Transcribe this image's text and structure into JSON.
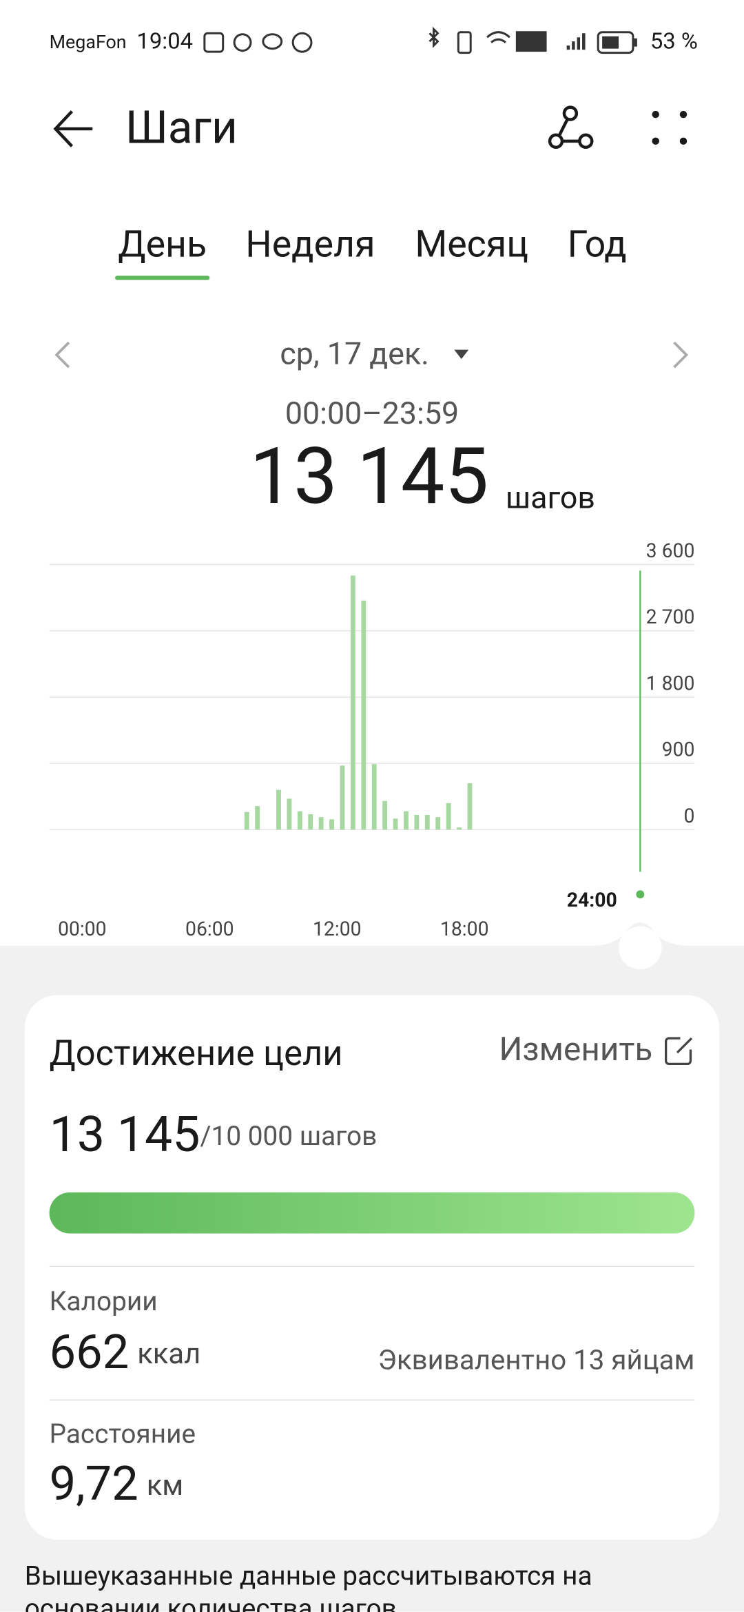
{
  "status_bar": {
    "carrier": "MegaFon",
    "time": "19:04",
    "battery": "53 %"
  },
  "header": {
    "title": "Шаги"
  },
  "tabs": {
    "items": [
      "День",
      "Неделя",
      "Месяц",
      "Год"
    ],
    "active": 0
  },
  "date_nav": {
    "date": "ср, 17 дек.",
    "range": "00:00–23:59"
  },
  "summary": {
    "total": "13 145",
    "unit": "шагов"
  },
  "chart_data": {
    "type": "bar",
    "color": "#a8d8a2",
    "x": [
      7.75,
      8.25,
      9.25,
      9.75,
      10.25,
      10.75,
      11.25,
      11.75,
      12.25,
      12.75,
      13.25,
      13.75,
      14.25,
      14.75,
      15.25,
      15.75,
      16.25,
      16.75,
      17.25,
      17.75,
      18.25
    ],
    "values": [
      240,
      320,
      540,
      420,
      250,
      210,
      170,
      140,
      870,
      3450,
      3110,
      890,
      390,
      150,
      250,
      200,
      200,
      170,
      360,
      30,
      630
    ],
    "xlim": [
      0,
      24
    ],
    "xticks": [
      {
        "value": 0,
        "label": "00:00"
      },
      {
        "value": 6,
        "label": "06:00"
      },
      {
        "value": 12,
        "label": "12:00"
      },
      {
        "value": 18,
        "label": "18:00"
      },
      {
        "value": 24,
        "label": "24:00"
      }
    ],
    "ylim": [
      0,
      3600
    ],
    "yticks": [
      0,
      900,
      {
        "value": 1800,
        "label": "1 800"
      },
      {
        "value": 2700,
        "label": "2 700"
      },
      {
        "value": 3600,
        "label": "3 600"
      }
    ],
    "grid": true
  },
  "goal_card": {
    "title": "Достижение цели",
    "edit": "Изменить",
    "steps": "13 145",
    "goal": "/10 000 шагов"
  },
  "calories": {
    "label": "Калории",
    "value": "662",
    "unit": "ккал",
    "equivalent": "Эквивалентно 13 яйцам"
  },
  "distance": {
    "label": "Расстояние",
    "value": "9,72",
    "unit": "км"
  },
  "footer": {
    "lines": [
      "Вышеуказанные данные рассчитываются на",
      "основании количества шагов."
    ]
  }
}
